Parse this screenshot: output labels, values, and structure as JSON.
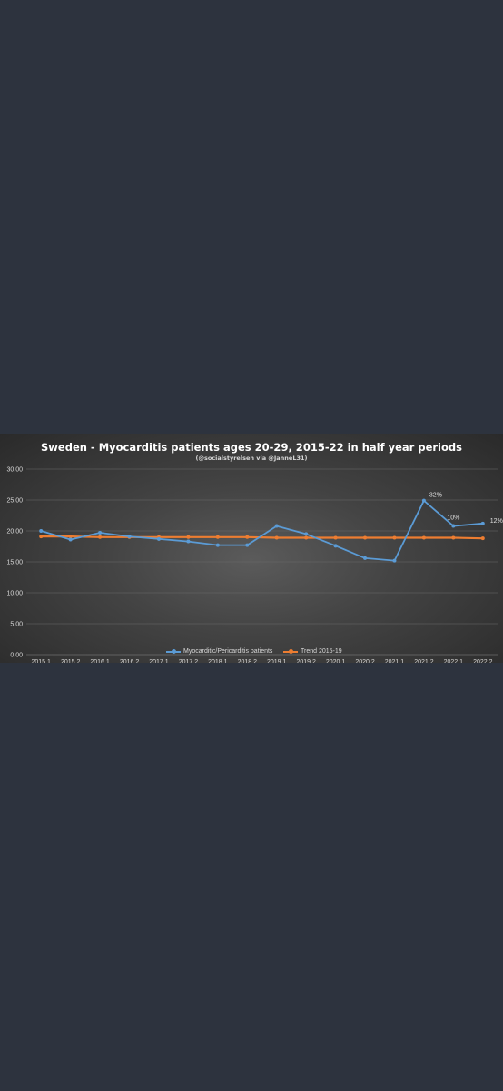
{
  "chart_data": {
    "type": "line",
    "title": "Sweden - Myocarditis patients ages 20-29, 2015-22 in half year periods",
    "subtitle": "(@socialstyrelsen via @JanneL31)",
    "categories": [
      "2015.1",
      "2015.2",
      "2016.1",
      "2016.2",
      "2017.1",
      "2017.2",
      "2018.1",
      "2018.2",
      "2019.1",
      "2019.2",
      "2020.1",
      "2020.2",
      "2021.1",
      "2021.2",
      "2022.1",
      "2022.2"
    ],
    "y_ticks": [
      "0.00",
      "5.00",
      "10.00",
      "15.00",
      "20.00",
      "25.00",
      "30.00"
    ],
    "ylim": [
      0,
      30
    ],
    "grid": true,
    "legend_position": "bottom",
    "series": [
      {
        "name": "Myocarditic/Pericarditis patients",
        "color": "#5b9bd5",
        "values": [
          20.0,
          18.6,
          19.7,
          19.1,
          18.7,
          18.3,
          17.7,
          17.7,
          20.8,
          19.5,
          17.6,
          15.6,
          15.2,
          24.9,
          20.8,
          21.2
        ]
      },
      {
        "name": "Trend 2015-19",
        "color": "#ed7d31",
        "values": [
          19.1,
          19.1,
          19.0,
          19.0,
          19.0,
          19.0,
          19.0,
          19.0,
          18.9,
          18.9,
          18.9,
          18.9,
          18.9,
          18.9,
          18.9,
          18.8
        ]
      }
    ],
    "annotations": [
      {
        "category": "2021.2",
        "text": "32%"
      },
      {
        "category": "2022.1",
        "text": "10%"
      },
      {
        "category": "2022.2",
        "text": "12%"
      }
    ]
  }
}
